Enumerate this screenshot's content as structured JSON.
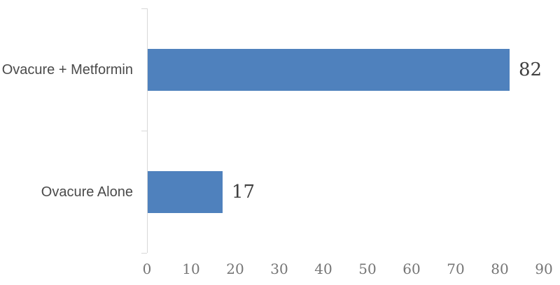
{
  "chart_data": {
    "type": "bar",
    "orientation": "horizontal",
    "title": "",
    "xlabel": "",
    "ylabel": "",
    "categories": [
      "Ovacure + Metformin",
      "Ovacure Alone"
    ],
    "values": [
      82,
      17
    ],
    "data_labels_shown": true,
    "xlim": [
      0,
      90
    ],
    "x_ticks": [
      0,
      10,
      20,
      30,
      40,
      50,
      60,
      70,
      80,
      90
    ],
    "grid": false,
    "legend": false,
    "colors": {
      "bar": "#4F81BD",
      "axis_line": "#D8D8D8",
      "tick_label": "#757575",
      "category_label": "#4A4A4A",
      "value_label": "#3F3F3F",
      "background": "#FFFFFF"
    }
  }
}
